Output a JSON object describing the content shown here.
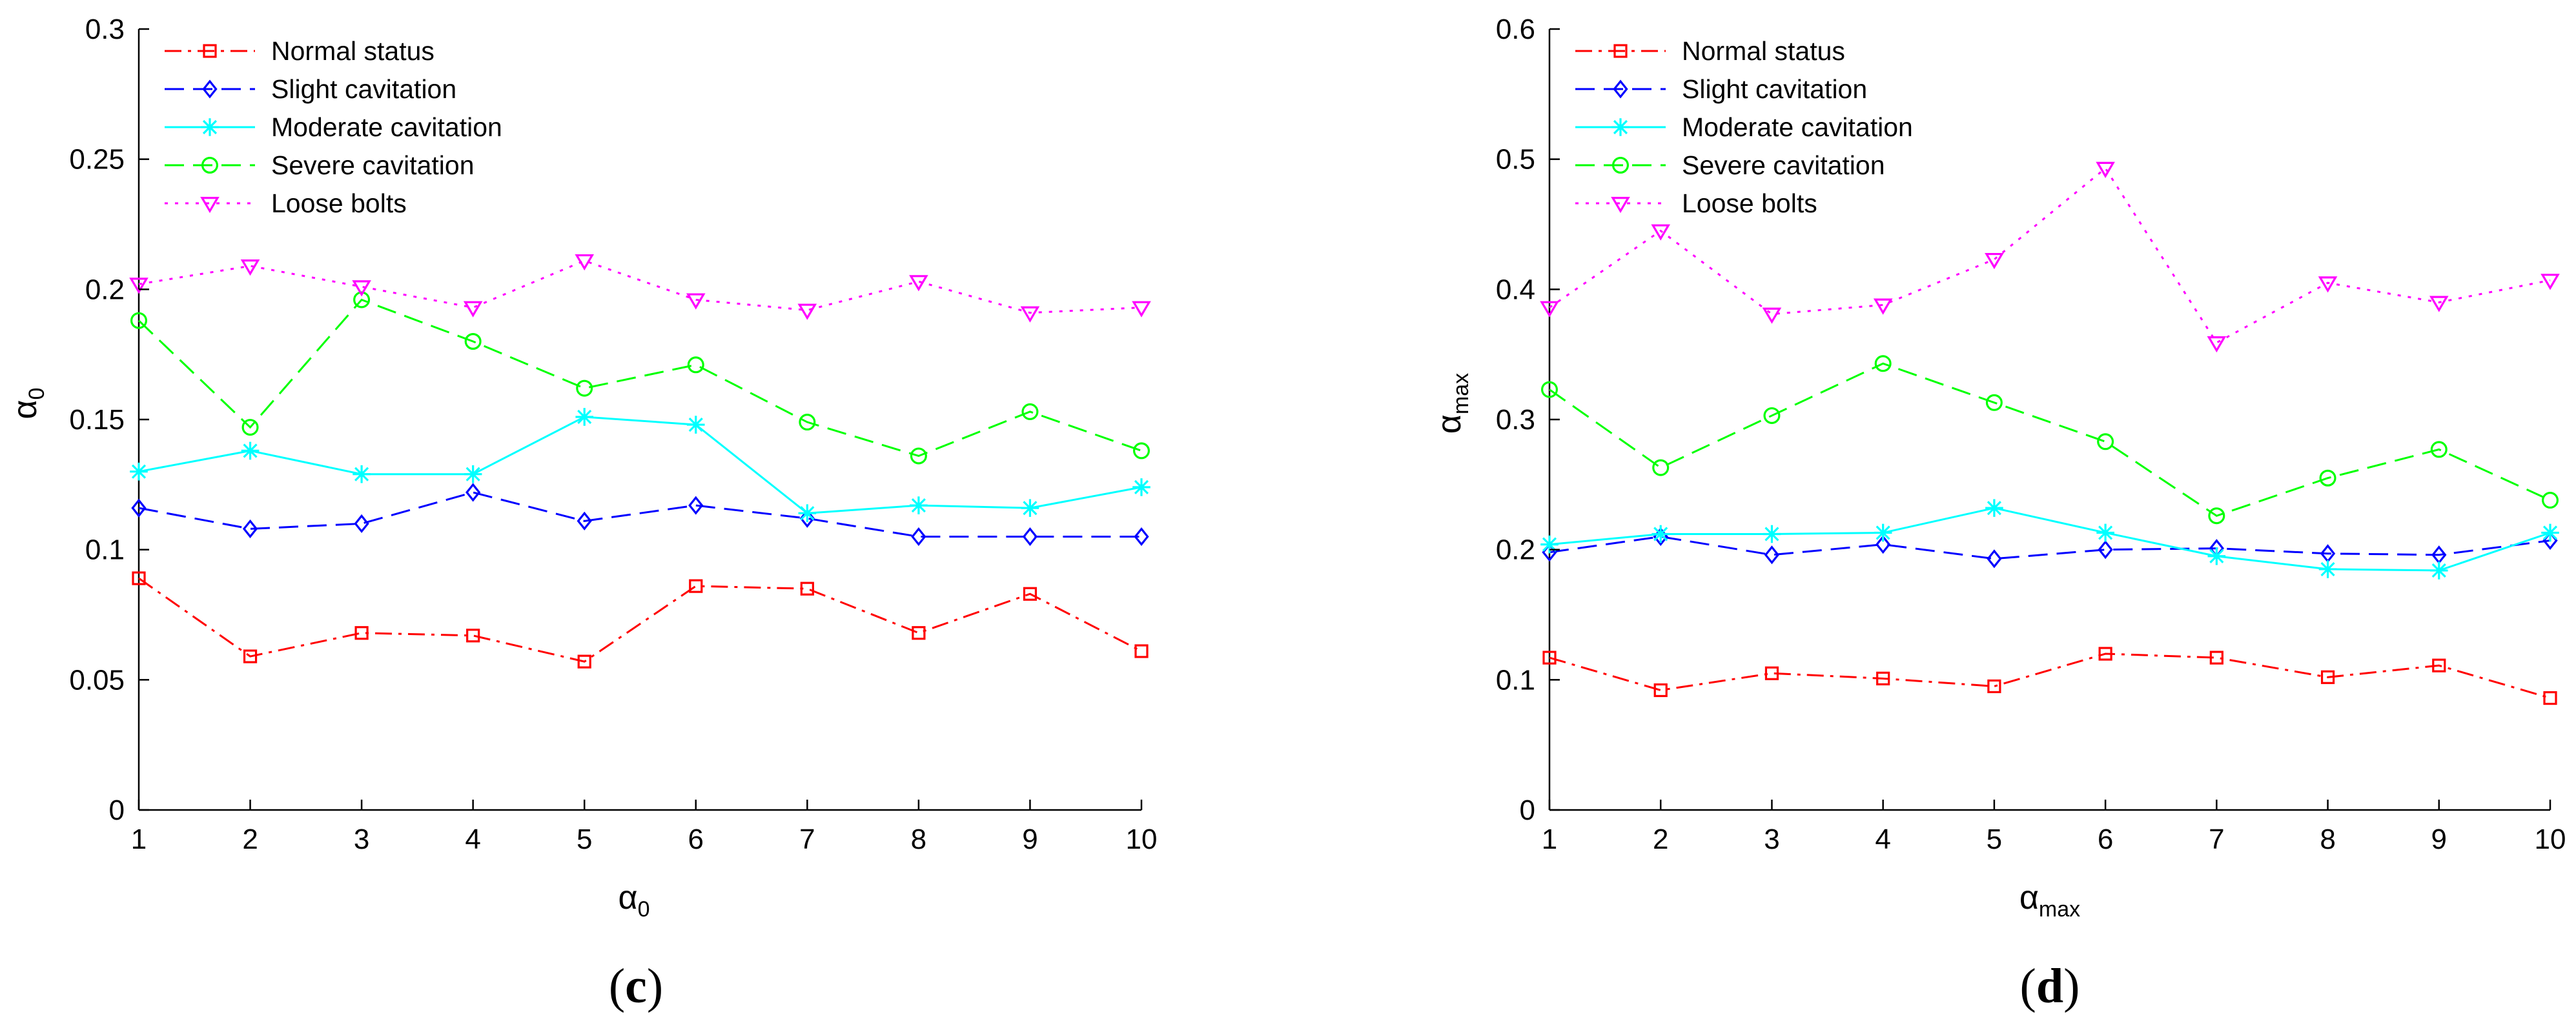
{
  "chart_data": [
    {
      "type": "line",
      "panel_label": "c",
      "xlabel": {
        "base": "α",
        "sub": "0"
      },
      "ylabel": {
        "base": "α",
        "sub": "0"
      },
      "x": [
        1,
        2,
        3,
        4,
        5,
        6,
        7,
        8,
        9,
        10
      ],
      "xlim": [
        1,
        10
      ],
      "ylim": [
        0,
        0.3
      ],
      "yticks": [
        0,
        0.05,
        0.1,
        0.15,
        0.2,
        0.25,
        0.3
      ],
      "ytick_labels": [
        "0",
        "0.05",
        "0.1",
        "0.15",
        "0.2",
        "0.25",
        "0.3"
      ],
      "xticks": [
        1,
        2,
        3,
        4,
        5,
        6,
        7,
        8,
        9,
        10
      ],
      "grid": false,
      "legend_position": "top-left",
      "series": [
        {
          "name": "Normal status",
          "color": "#ff0000",
          "marker": "square",
          "dash": "dashdot",
          "values": [
            0.089,
            0.059,
            0.068,
            0.067,
            0.057,
            0.086,
            0.085,
            0.068,
            0.083,
            0.061
          ]
        },
        {
          "name": "Slight cavitation",
          "color": "#0000ff",
          "marker": "diamond",
          "dash": "dashed",
          "values": [
            0.116,
            0.108,
            0.11,
            0.122,
            0.111,
            0.117,
            0.112,
            0.105,
            0.105,
            0.105
          ]
        },
        {
          "name": "Moderate cavitation",
          "color": "#00ffff",
          "marker": "asterisk",
          "dash": "solid",
          "values": [
            0.13,
            0.138,
            0.129,
            0.129,
            0.151,
            0.148,
            0.114,
            0.117,
            0.116,
            0.124
          ]
        },
        {
          "name": "Severe cavitation",
          "color": "#00ff00",
          "marker": "circle",
          "dash": "dashed",
          "values": [
            0.188,
            0.147,
            0.196,
            0.18,
            0.162,
            0.171,
            0.149,
            0.136,
            0.153,
            0.138
          ]
        },
        {
          "name": "Loose bolts",
          "color": "#ff00ff",
          "marker": "triangle-down",
          "dash": "dotted",
          "values": [
            0.202,
            0.209,
            0.201,
            0.193,
            0.211,
            0.196,
            0.192,
            0.203,
            0.191,
            0.193
          ]
        }
      ]
    },
    {
      "type": "line",
      "panel_label": "d",
      "xlabel": {
        "base": "α",
        "sub": "max"
      },
      "ylabel": {
        "base": "α",
        "sub": "max"
      },
      "x": [
        1,
        2,
        3,
        4,
        5,
        6,
        7,
        8,
        9,
        10
      ],
      "xlim": [
        1,
        10
      ],
      "ylim": [
        0,
        0.6
      ],
      "yticks": [
        0,
        0.1,
        0.2,
        0.3,
        0.4,
        0.5,
        0.6
      ],
      "ytick_labels": [
        "0",
        "0.1",
        "0.2",
        "0.3",
        "0.4",
        "0.5",
        "0.6"
      ],
      "xticks": [
        1,
        2,
        3,
        4,
        5,
        6,
        7,
        8,
        9,
        10
      ],
      "grid": false,
      "legend_position": "top-left",
      "series": [
        {
          "name": "Normal status",
          "color": "#ff0000",
          "marker": "square",
          "dash": "dashdot",
          "values": [
            0.117,
            0.092,
            0.105,
            0.101,
            0.095,
            0.12,
            0.117,
            0.102,
            0.111,
            0.086
          ]
        },
        {
          "name": "Slight cavitation",
          "color": "#0000ff",
          "marker": "diamond",
          "dash": "dashed",
          "values": [
            0.198,
            0.21,
            0.196,
            0.204,
            0.193,
            0.2,
            0.201,
            0.197,
            0.196,
            0.207
          ]
        },
        {
          "name": "Moderate cavitation",
          "color": "#00ffff",
          "marker": "asterisk",
          "dash": "solid",
          "values": [
            0.204,
            0.212,
            0.212,
            0.213,
            0.232,
            0.213,
            0.195,
            0.185,
            0.184,
            0.213
          ]
        },
        {
          "name": "Severe cavitation",
          "color": "#00ff00",
          "marker": "circle",
          "dash": "dashed",
          "values": [
            0.323,
            0.263,
            0.303,
            0.343,
            0.313,
            0.283,
            0.226,
            0.255,
            0.277,
            0.238
          ]
        },
        {
          "name": "Loose bolts",
          "color": "#ff00ff",
          "marker": "triangle-down",
          "dash": "dotted",
          "values": [
            0.386,
            0.445,
            0.381,
            0.388,
            0.423,
            0.493,
            0.359,
            0.405,
            0.39,
            0.407
          ]
        }
      ]
    }
  ]
}
